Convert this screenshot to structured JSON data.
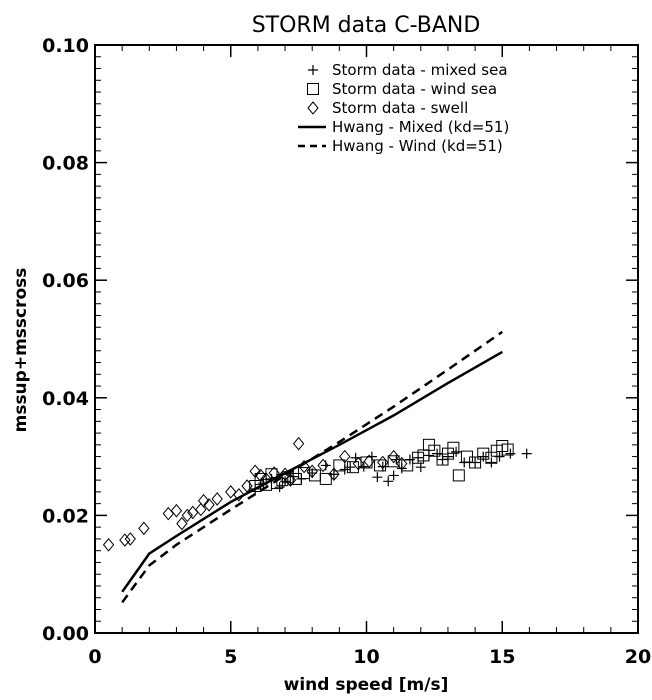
{
  "chart_data": {
    "type": "scatter",
    "title": "STORM data C-BAND",
    "xlabel": "wind speed [m/s]",
    "ylabel": "mssup+msscross",
    "xlim": [
      0,
      20
    ],
    "ylim": [
      0.0,
      0.1
    ],
    "x_ticks": [
      "0",
      "5",
      "10",
      "15",
      "20"
    ],
    "y_ticks": [
      "0.00",
      "0.02",
      "0.04",
      "0.06",
      "0.08",
      "0.10"
    ],
    "grid": false,
    "legend_position": "top-right",
    "colors": {
      "all": "#000000"
    },
    "series": [
      {
        "name": "Storm data - mixed sea",
        "marker": "plus",
        "points": [
          [
            5.9,
            0.0245
          ],
          [
            6.2,
            0.0255
          ],
          [
            6.5,
            0.0262
          ],
          [
            6.8,
            0.0248
          ],
          [
            7.0,
            0.0258
          ],
          [
            7.3,
            0.0266
          ],
          [
            7.6,
            0.0262
          ],
          [
            8.0,
            0.0272
          ],
          [
            8.5,
            0.0285
          ],
          [
            8.8,
            0.027
          ],
          [
            9.2,
            0.0278
          ],
          [
            9.4,
            0.0282
          ],
          [
            9.6,
            0.0298
          ],
          [
            9.9,
            0.0283
          ],
          [
            10.2,
            0.03
          ],
          [
            10.4,
            0.0265
          ],
          [
            10.6,
            0.0283
          ],
          [
            10.8,
            0.0258
          ],
          [
            11.0,
            0.0268
          ],
          [
            11.1,
            0.0295
          ],
          [
            11.3,
            0.028
          ],
          [
            11.6,
            0.0295
          ],
          [
            11.9,
            0.0298
          ],
          [
            12.0,
            0.0282
          ],
          [
            12.3,
            0.0302
          ],
          [
            12.6,
            0.0305
          ],
          [
            12.8,
            0.0295
          ],
          [
            13.0,
            0.03
          ],
          [
            13.3,
            0.0308
          ],
          [
            13.6,
            0.029
          ],
          [
            14.0,
            0.029
          ],
          [
            14.3,
            0.03
          ],
          [
            14.6,
            0.029
          ],
          [
            14.9,
            0.03
          ],
          [
            15.3,
            0.0305
          ],
          [
            15.9,
            0.0305
          ]
        ]
      },
      {
        "name": "Storm data - wind sea",
        "marker": "square",
        "points": [
          [
            5.9,
            0.025
          ],
          [
            6.1,
            0.0262
          ],
          [
            6.3,
            0.0252
          ],
          [
            6.5,
            0.027
          ],
          [
            6.7,
            0.0255
          ],
          [
            6.9,
            0.026
          ],
          [
            7.1,
            0.0265
          ],
          [
            7.4,
            0.0262
          ],
          [
            7.7,
            0.0272
          ],
          [
            8.1,
            0.0268
          ],
          [
            8.5,
            0.0262
          ],
          [
            9.0,
            0.0285
          ],
          [
            9.5,
            0.0282
          ],
          [
            10.0,
            0.029
          ],
          [
            10.5,
            0.0285
          ],
          [
            11.0,
            0.0292
          ],
          [
            11.5,
            0.0285
          ],
          [
            11.9,
            0.0298
          ],
          [
            12.1,
            0.0302
          ],
          [
            12.3,
            0.032
          ],
          [
            12.5,
            0.031
          ],
          [
            12.8,
            0.0295
          ],
          [
            13.0,
            0.0305
          ],
          [
            13.2,
            0.0315
          ],
          [
            13.4,
            0.0268
          ],
          [
            13.7,
            0.03
          ],
          [
            14.0,
            0.029
          ],
          [
            14.3,
            0.0305
          ],
          [
            14.6,
            0.0298
          ],
          [
            14.8,
            0.031
          ],
          [
            15.0,
            0.0318
          ],
          [
            15.2,
            0.0312
          ]
        ]
      },
      {
        "name": "Storm data - swell",
        "marker": "diamond",
        "points": [
          [
            0.5,
            0.015
          ],
          [
            1.1,
            0.0158
          ],
          [
            1.3,
            0.016
          ],
          [
            1.8,
            0.0178
          ],
          [
            2.7,
            0.0203
          ],
          [
            3.0,
            0.0208
          ],
          [
            3.2,
            0.0186
          ],
          [
            3.4,
            0.02
          ],
          [
            3.6,
            0.0205
          ],
          [
            3.9,
            0.021
          ],
          [
            4.0,
            0.0225
          ],
          [
            4.2,
            0.0218
          ],
          [
            4.5,
            0.0228
          ],
          [
            5.0,
            0.024
          ],
          [
            5.3,
            0.0235
          ],
          [
            5.6,
            0.025
          ],
          [
            5.9,
            0.0275
          ],
          [
            6.1,
            0.0268
          ],
          [
            6.3,
            0.0262
          ],
          [
            6.6,
            0.0272
          ],
          [
            7.0,
            0.027
          ],
          [
            7.2,
            0.026
          ],
          [
            7.5,
            0.0322
          ],
          [
            7.7,
            0.0283
          ],
          [
            8.0,
            0.0275
          ],
          [
            8.4,
            0.0285
          ],
          [
            8.8,
            0.027
          ],
          [
            9.2,
            0.03
          ],
          [
            9.7,
            0.0288
          ],
          [
            10.1,
            0.0292
          ],
          [
            10.6,
            0.029
          ],
          [
            11.0,
            0.03
          ],
          [
            11.3,
            0.0288
          ]
        ]
      },
      {
        "name": "Hwang - Mixed (kd=51)",
        "style": "solid",
        "line": [
          [
            1,
            0.007
          ],
          [
            2,
            0.0135
          ],
          [
            3,
            0.0165
          ],
          [
            5,
            0.0223
          ],
          [
            7,
            0.0272
          ],
          [
            9,
            0.032
          ],
          [
            11,
            0.037
          ],
          [
            13,
            0.0425
          ],
          [
            15,
            0.0478
          ]
        ]
      },
      {
        "name": "Hwang - Wind (kd=51)",
        "style": "dashed",
        "line": [
          [
            1,
            0.0052
          ],
          [
            2,
            0.0115
          ],
          [
            3,
            0.015
          ],
          [
            5,
            0.021
          ],
          [
            7,
            0.0268
          ],
          [
            9,
            0.0325
          ],
          [
            11,
            0.0385
          ],
          [
            13,
            0.0448
          ],
          [
            15,
            0.0512
          ]
        ]
      }
    ]
  }
}
